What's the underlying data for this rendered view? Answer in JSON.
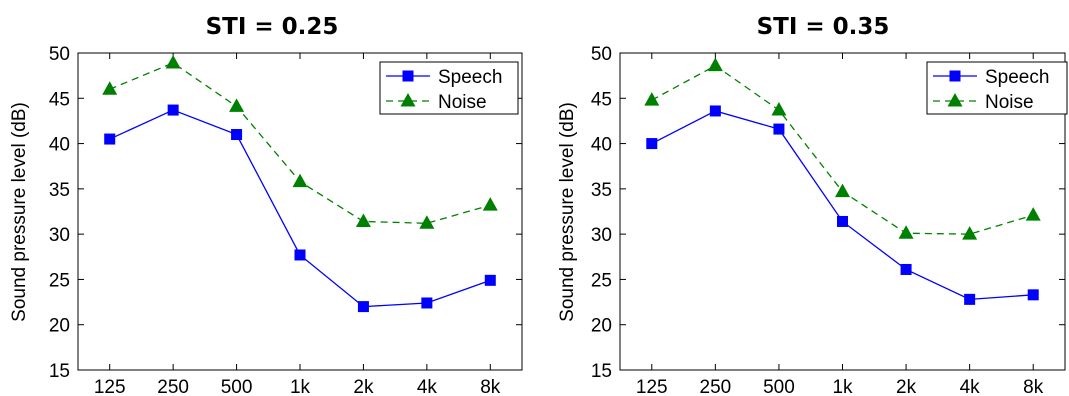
{
  "chart_data": [
    {
      "type": "line",
      "title": "STI = 0.25",
      "xlabel": "",
      "ylabel": "Sound pressure level (dB)",
      "categories": [
        "125",
        "250",
        "500",
        "1k",
        "2k",
        "4k",
        "8k"
      ],
      "ylim": [
        15,
        50
      ],
      "yticks": [
        15,
        20,
        25,
        30,
        35,
        40,
        45,
        50
      ],
      "grid": false,
      "legend": "top-right",
      "series": [
        {
          "name": "Speech",
          "values": [
            40.5,
            43.7,
            41.0,
            27.7,
            22.0,
            22.4,
            24.9
          ],
          "color": "#0000ff",
          "marker": "square",
          "line": "solid"
        },
        {
          "name": "Noise",
          "values": [
            46.0,
            48.9,
            44.1,
            35.8,
            31.4,
            31.2,
            33.2
          ],
          "color": "#008000",
          "marker": "triangle",
          "line": "dashed"
        }
      ]
    },
    {
      "type": "line",
      "title": "STI = 0.35",
      "xlabel": "",
      "ylabel": "Sound pressure level (dB)",
      "categories": [
        "125",
        "250",
        "500",
        "1k",
        "2k",
        "4k",
        "8k"
      ],
      "ylim": [
        15,
        50
      ],
      "yticks": [
        15,
        20,
        25,
        30,
        35,
        40,
        45,
        50
      ],
      "grid": false,
      "legend": "top-right",
      "series": [
        {
          "name": "Speech",
          "values": [
            40.0,
            43.6,
            41.6,
            31.4,
            26.1,
            22.8,
            23.3
          ],
          "color": "#0000ff",
          "marker": "square",
          "line": "solid"
        },
        {
          "name": "Noise",
          "values": [
            44.8,
            48.6,
            43.7,
            34.7,
            30.1,
            30.0,
            32.1
          ],
          "color": "#008000",
          "marker": "triangle",
          "line": "dashed"
        }
      ]
    }
  ]
}
